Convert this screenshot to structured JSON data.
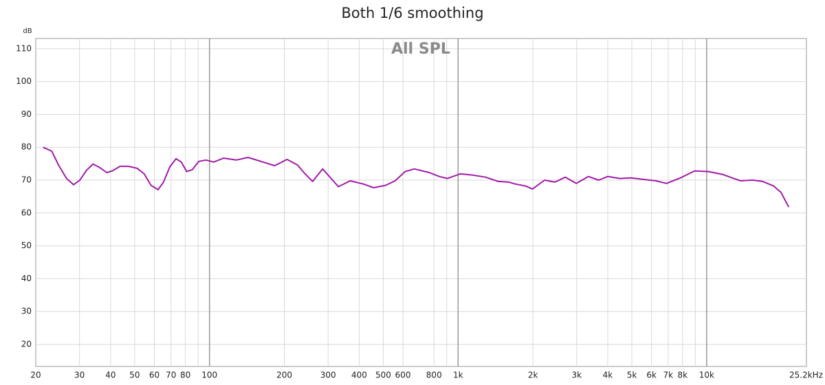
{
  "chart_data": {
    "type": "line",
    "title": "Both 1/6 smoothing",
    "y_label": "dB",
    "annotation": "All SPL",
    "x": [
      21.4,
      23.2,
      24.7,
      26.6,
      28.4,
      30.1,
      32,
      34,
      36.2,
      38.6,
      40.6,
      43.7,
      47.2,
      51.2,
      54.6,
      58.2,
      62.1,
      65.3,
      69.2,
      73.3,
      77,
      81,
      85.3,
      90.5,
      96.7,
      104,
      114,
      128,
      143,
      164,
      183,
      205,
      226,
      241,
      260,
      285,
      307,
      330,
      368,
      416,
      457,
      511,
      558,
      612,
      667,
      766,
      840,
      906,
      1020,
      1150,
      1290,
      1450,
      1600,
      1700,
      1870,
      1990,
      2230,
      2450,
      2700,
      2990,
      3340,
      3680,
      4000,
      4470,
      4960,
      5480,
      6250,
      6890,
      7850,
      8950,
      10200,
      11650,
      12850,
      13700,
      15300,
      16800,
      18600,
      19900,
      21400
    ],
    "series": [
      {
        "name": "All SPL",
        "color": "#a01aa8",
        "values": [
          80,
          78.8,
          74.6,
          70.5,
          68.6,
          70,
          73,
          74.9,
          73.8,
          72.3,
          72.8,
          74.2,
          74.2,
          73.6,
          71.9,
          68.4,
          67.1,
          69.4,
          74,
          76.5,
          75.5,
          72.6,
          73.2,
          75.7,
          76.1,
          75.5,
          76.7,
          76.1,
          76.9,
          75.5,
          74.4,
          76.3,
          74.6,
          72.1,
          69.6,
          73.4,
          70.7,
          68,
          69.8,
          68.8,
          67.7,
          68.4,
          69.8,
          72.6,
          73.4,
          72.3,
          71.1,
          70.5,
          71.9,
          71.5,
          70.9,
          69.6,
          69.4,
          68.8,
          68.2,
          67.3,
          70,
          69.4,
          70.9,
          69,
          71.1,
          70,
          71.1,
          70.5,
          70.7,
          70.3,
          69.8,
          69,
          70.7,
          72.8,
          72.6,
          71.7,
          70.5,
          69.8,
          70,
          69.6,
          68.2,
          66.3,
          61.8
        ]
      }
    ],
    "xlim": [
      20,
      25200
    ],
    "log_x": true,
    "xticks": [
      20,
      30,
      40,
      50,
      60,
      70,
      80,
      100,
      200,
      300,
      400,
      500,
      600,
      800,
      {
        "value": 1000,
        "label": "1k"
      },
      {
        "value": 2000,
        "label": "2k"
      },
      {
        "value": 3000,
        "label": "3k"
      },
      {
        "value": 4000,
        "label": "4k"
      },
      {
        "value": 5000,
        "label": "5k"
      },
      {
        "value": 6000,
        "label": "6k"
      },
      {
        "value": 7000,
        "label": "7k"
      },
      {
        "value": 8000,
        "label": "8k"
      },
      {
        "value": 10000,
        "label": "10k"
      },
      {
        "value": 25200,
        "label": "25.2kHz"
      }
    ],
    "xminor": [
      90,
      900,
      9000
    ],
    "ylim": [
      13.3,
      113.1
    ],
    "yticks": [
      20,
      30,
      40,
      50,
      60,
      70,
      80,
      90,
      100,
      110
    ],
    "grid": true
  }
}
